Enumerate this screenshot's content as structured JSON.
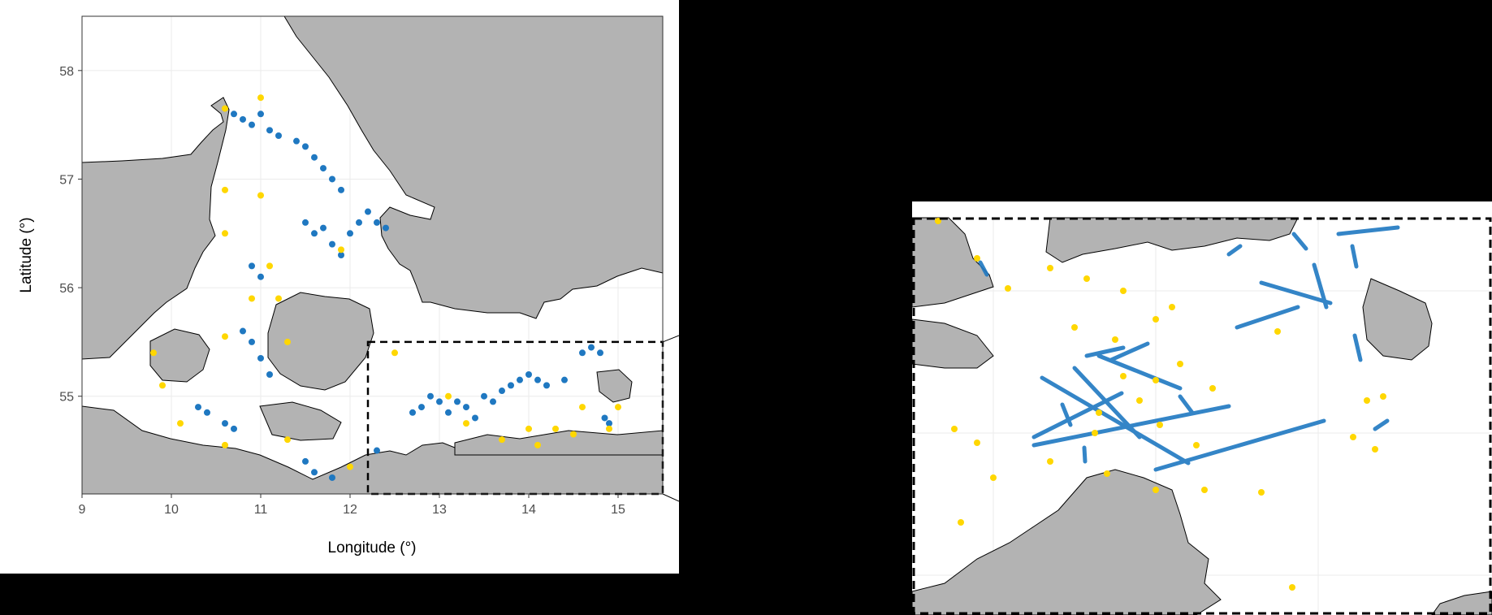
{
  "left_map": {
    "xlabel": "Longitude (°)",
    "ylabel": "Latitude (°)",
    "x_ticks": [
      "9",
      "10",
      "11",
      "12",
      "13",
      "14",
      "15"
    ],
    "y_ticks": [
      "58",
      "57",
      "56",
      "55"
    ],
    "xlim": [
      9,
      15.5
    ],
    "ylim": [
      54.1,
      58.5
    ],
    "inset_box": {
      "lon": [
        12.2,
        15.5
      ],
      "lat": [
        54.1,
        55.5
      ]
    }
  },
  "colors": {
    "land": "#b3b3b3",
    "sea": "#ffffff",
    "series_blue": "#1f78c1",
    "series_yellow": "#ffd700",
    "background": "#000000"
  },
  "chart_data": {
    "type": "scatter",
    "series": [
      {
        "color": "#1f78c1",
        "points": [
          [
            10.7,
            57.6
          ],
          [
            10.8,
            57.55
          ],
          [
            10.9,
            57.5
          ],
          [
            11.0,
            57.6
          ],
          [
            11.1,
            57.45
          ],
          [
            11.2,
            57.4
          ],
          [
            11.4,
            57.35
          ],
          [
            11.5,
            57.3
          ],
          [
            11.6,
            57.2
          ],
          [
            11.7,
            57.1
          ],
          [
            11.8,
            57.0
          ],
          [
            11.9,
            56.9
          ],
          [
            11.5,
            56.6
          ],
          [
            11.6,
            56.5
          ],
          [
            11.7,
            56.55
          ],
          [
            11.8,
            56.4
          ],
          [
            11.9,
            56.3
          ],
          [
            12.0,
            56.5
          ],
          [
            12.1,
            56.6
          ],
          [
            12.2,
            56.7
          ],
          [
            12.3,
            56.6
          ],
          [
            12.4,
            56.55
          ],
          [
            10.9,
            56.2
          ],
          [
            11.0,
            56.1
          ],
          [
            10.8,
            55.6
          ],
          [
            10.9,
            55.5
          ],
          [
            11.0,
            55.35
          ],
          [
            11.1,
            55.2
          ],
          [
            10.3,
            54.9
          ],
          [
            10.4,
            54.85
          ],
          [
            10.6,
            54.75
          ],
          [
            10.7,
            54.7
          ],
          [
            11.5,
            54.4
          ],
          [
            11.6,
            54.3
          ],
          [
            11.8,
            54.25
          ],
          [
            12.3,
            54.5
          ],
          [
            12.7,
            54.85
          ],
          [
            12.8,
            54.9
          ],
          [
            12.9,
            55.0
          ],
          [
            13.0,
            54.95
          ],
          [
            13.1,
            54.85
          ],
          [
            13.2,
            54.95
          ],
          [
            13.3,
            54.9
          ],
          [
            13.4,
            54.8
          ],
          [
            13.5,
            55.0
          ],
          [
            13.6,
            54.95
          ],
          [
            13.7,
            55.05
          ],
          [
            13.8,
            55.1
          ],
          [
            13.9,
            55.15
          ],
          [
            14.0,
            55.2
          ],
          [
            14.1,
            55.15
          ],
          [
            14.2,
            55.1
          ],
          [
            14.4,
            55.15
          ],
          [
            14.6,
            55.4
          ],
          [
            14.7,
            55.45
          ],
          [
            14.8,
            55.4
          ],
          [
            14.85,
            54.8
          ],
          [
            14.9,
            54.75
          ]
        ]
      },
      {
        "color": "#ffd700",
        "points": [
          [
            10.6,
            57.65
          ],
          [
            11.0,
            57.75
          ],
          [
            10.6,
            56.9
          ],
          [
            11.0,
            56.85
          ],
          [
            10.6,
            56.5
          ],
          [
            11.1,
            56.2
          ],
          [
            10.9,
            55.9
          ],
          [
            10.6,
            55.55
          ],
          [
            9.8,
            55.4
          ],
          [
            9.9,
            55.1
          ],
          [
            10.1,
            54.75
          ],
          [
            10.6,
            54.55
          ],
          [
            11.3,
            54.6
          ],
          [
            12.0,
            54.35
          ],
          [
            12.5,
            55.4
          ],
          [
            13.1,
            55.0
          ],
          [
            13.3,
            54.75
          ],
          [
            13.7,
            54.6
          ],
          [
            14.0,
            54.7
          ],
          [
            14.1,
            54.55
          ],
          [
            14.3,
            54.7
          ],
          [
            14.5,
            54.65
          ],
          [
            14.6,
            54.9
          ],
          [
            14.9,
            54.7
          ],
          [
            15.0,
            54.9
          ],
          [
            11.3,
            55.5
          ],
          [
            11.2,
            55.9
          ],
          [
            11.9,
            56.35
          ]
        ]
      }
    ]
  }
}
